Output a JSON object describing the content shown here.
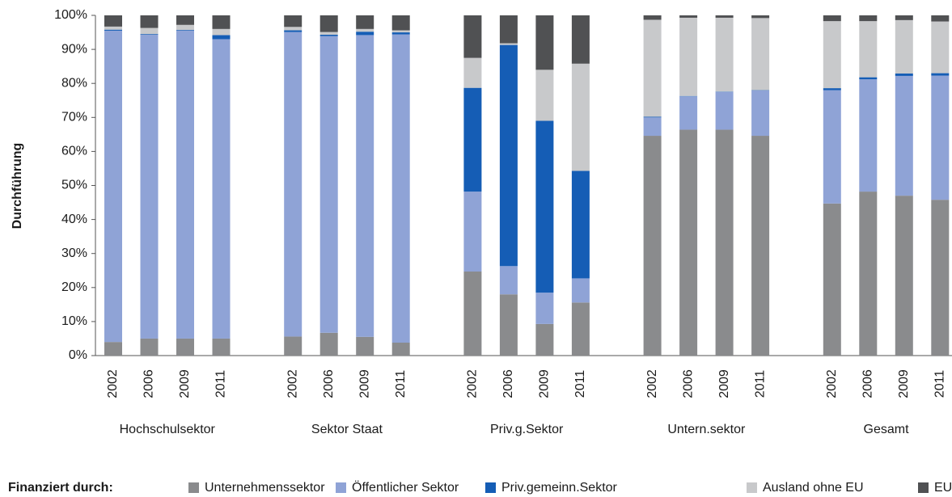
{
  "chart_data": {
    "type": "stacked-bar",
    "y_label": "Durchführung",
    "legend_title": "Finanziert durch:",
    "groups": [
      {
        "name": "Hochschulsektor",
        "categories": [
          "2002",
          "2006",
          "2009",
          "2011"
        ]
      },
      {
        "name": "Sektor Staat",
        "categories": [
          "2002",
          "2006",
          "2009",
          "2011"
        ]
      },
      {
        "name": "Priv.g.Sektor",
        "categories": [
          "2002",
          "2006",
          "2009",
          "2011"
        ]
      },
      {
        "name": "Untern.sektor",
        "categories": [
          "2002",
          "2006",
          "2009",
          "2011"
        ]
      },
      {
        "name": "Gesamt",
        "categories": [
          "2002",
          "2006",
          "2009",
          "2011"
        ]
      }
    ],
    "series": [
      {
        "name": "Unternehmenssektor",
        "color": "#8a8b8d",
        "values": [
          4,
          5,
          5,
          5,
          5.6,
          6.7,
          5.5,
          3.8,
          24.7,
          18,
          9.3,
          15.6,
          64.6,
          66.4,
          66.4,
          64.6,
          44.7,
          48.2,
          47,
          45.8
        ]
      },
      {
        "name": "Öffentlicher Sektor",
        "color": "#8fa3d6",
        "values": [
          91.5,
          89.3,
          90.5,
          88,
          89.5,
          87.2,
          88.7,
          90.6,
          23.5,
          8.3,
          9.2,
          7.1,
          5.4,
          9.8,
          11.1,
          13.3,
          33.3,
          33,
          35.2,
          36.5
        ]
      },
      {
        "name": "Priv.gemeinn.Sektor",
        "color": "#155db5",
        "values": [
          0.3,
          0.2,
          0.2,
          1.2,
          0.5,
          0.4,
          1,
          0.6,
          30.5,
          65,
          50.5,
          31.6,
          0.2,
          0.1,
          0.1,
          0.1,
          0.6,
          0.6,
          0.7,
          0.7
        ]
      },
      {
        "name": "Ausland ohne EU",
        "color": "#c8c9cb",
        "values": [
          0.9,
          1.8,
          1.5,
          1.8,
          1,
          0.8,
          0.8,
          0.6,
          8.8,
          0.5,
          15,
          31.5,
          28.5,
          23,
          21.7,
          21.2,
          19.7,
          16.5,
          15.7,
          15.2
        ]
      },
      {
        "name": "EU",
        "color": "#505153",
        "values": [
          3.3,
          3.7,
          2.8,
          4,
          3.4,
          4.9,
          4,
          4.4,
          12.5,
          8.2,
          16,
          14.2,
          1.3,
          0.7,
          0.7,
          0.8,
          1.7,
          1.7,
          1.4,
          1.8
        ]
      }
    ],
    "ylim": [
      0,
      100
    ],
    "yticks": [
      {
        "value": 0,
        "label": "0%"
      },
      {
        "value": 10,
        "label": "10%"
      },
      {
        "value": 20,
        "label": "20%"
      },
      {
        "value": 30,
        "label": "30%"
      },
      {
        "value": 40,
        "label": "40%"
      },
      {
        "value": 50,
        "label": "50%"
      },
      {
        "value": 60,
        "label": "60%"
      },
      {
        "value": 70,
        "label": "70%"
      },
      {
        "value": 80,
        "label": "80%"
      },
      {
        "value": 90,
        "label": "90%"
      },
      {
        "value": 100,
        "label": "100%"
      }
    ]
  }
}
